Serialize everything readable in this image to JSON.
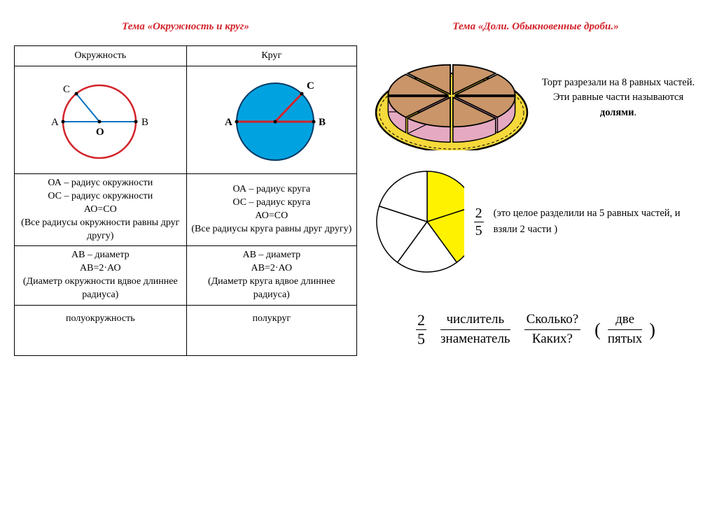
{
  "left": {
    "title": "Тема «Окружность и круг»",
    "headers": {
      "col1": "Окружность",
      "col2": "Круг"
    },
    "circle_outline": {
      "stroke": "#d3232a",
      "line": "#0070c0",
      "label_A": "A",
      "label_B": "B",
      "label_C": "C",
      "label_O": "O"
    },
    "circle_filled": {
      "fill": "#00a3e0",
      "line": "#d3232a",
      "label_A": "A",
      "label_B": "B",
      "label_C": "C"
    },
    "row2_col1": "ОА – радиус окружности\nОС – радиус окружности\nАО=СО\n(Все радиусы окружности равны друг другу)",
    "row2_col2": "ОА – радиус круга\nОС – радиус круга\nАО=СО\n(Все радиусы круга равны друг другу)",
    "row3_col1": "АВ – диаметр\nАВ=2·АО\n(Диаметр окружности вдвое длиннее радиуса)",
    "row3_col2": "АВ – диаметр\nАВ=2·АО\n(Диаметр круга вдвое длиннее радиуса)",
    "row4_col1": "полуокружность",
    "row4_col2": "полукруг"
  },
  "right": {
    "title": "Тема «Доли. Обыкновенные дроби.»",
    "cake": {
      "slices": 8,
      "plate_fill": "#f6d93a",
      "plate_rim": "#000000",
      "top_fill": "#c99569",
      "side_fill": "#e6a9c2",
      "edge": "#000000",
      "text_before": "Торт разрезали на 8 равных частей. Эти равные части называются ",
      "bold_word": "долями",
      "text_after": "."
    },
    "pie": {
      "segments": 5,
      "filled": 2,
      "fill_color": "#fff200",
      "empty_color": "#ffffff",
      "stroke": "#000000",
      "fraction_num": "2",
      "fraction_den": "5",
      "text": "(это целое разделили на 5 равных частей, и взяли 2 части )"
    },
    "frac_expl": {
      "num": "2",
      "den": "5",
      "w1_top": "числитель",
      "w1_bot": "знаменатель",
      "w2_top": "Сколько?",
      "w2_bot": "Каких?",
      "w3_top": "две",
      "w3_bot": "пятых"
    }
  }
}
